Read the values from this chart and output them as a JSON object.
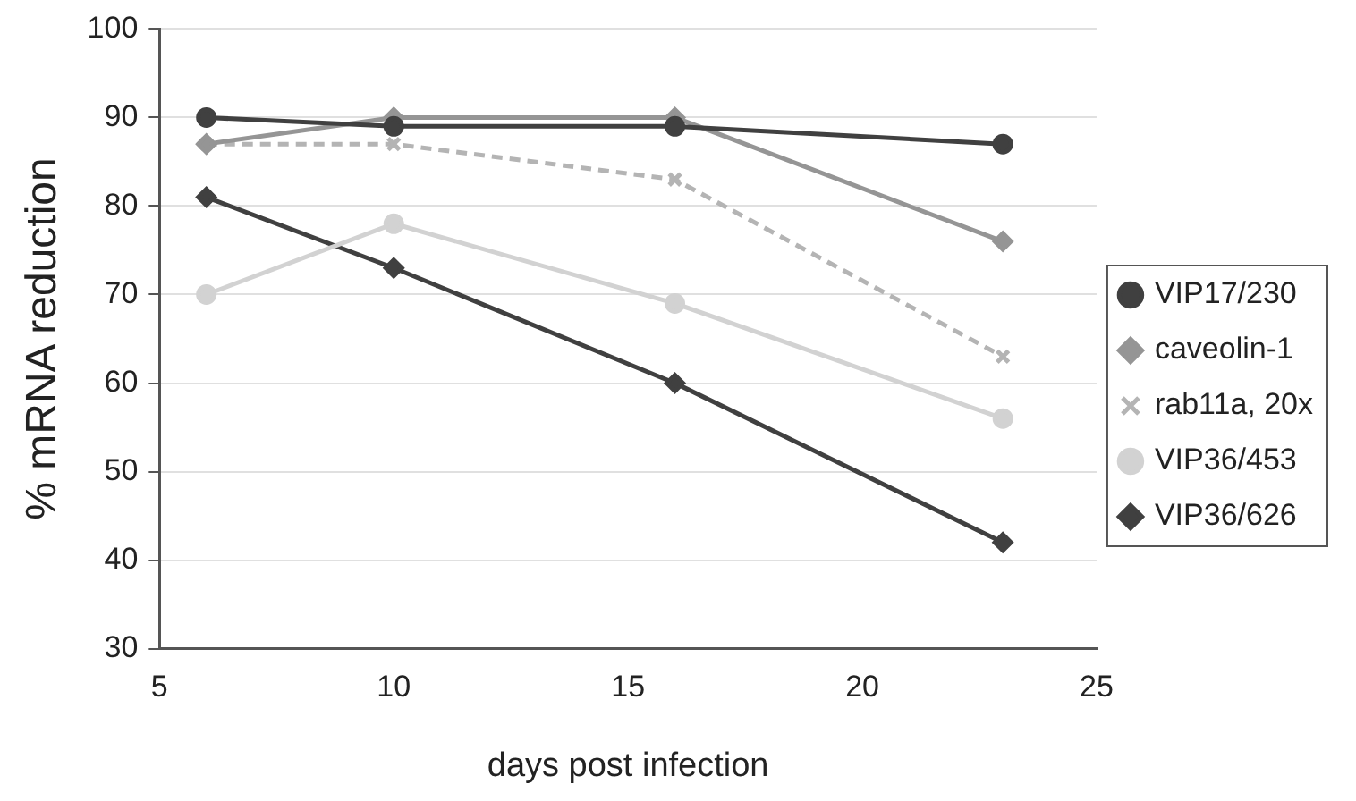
{
  "chart_data": {
    "type": "line",
    "xlabel": "days post infection",
    "ylabel": "% mRNA reduction",
    "x": [
      6,
      10,
      16,
      23
    ],
    "xlim": [
      5,
      25
    ],
    "xticks": [
      5,
      10,
      15,
      20,
      25
    ],
    "ylim": [
      30,
      100
    ],
    "yticks": [
      30,
      40,
      50,
      60,
      70,
      80,
      90,
      100
    ],
    "grid": "y",
    "legend": "right",
    "series": [
      {
        "name": "VIP17/230",
        "color": "#404040",
        "marker": "circle",
        "line_style": "solid",
        "values": [
          90,
          89,
          89,
          87
        ]
      },
      {
        "name": "caveolin-1",
        "color": "#959595",
        "marker": "diamond",
        "line_style": "solid",
        "values": [
          87,
          90,
          90,
          76
        ]
      },
      {
        "name": "rab11a, 20x",
        "color": "#b4b4b4",
        "marker": "cross",
        "line_style": "dashed",
        "values": [
          87,
          87,
          83,
          63
        ]
      },
      {
        "name": "VIP36/453",
        "color": "#d2d2d2",
        "marker": "circle",
        "line_style": "solid",
        "values": [
          70,
          78,
          69,
          56
        ]
      },
      {
        "name": "VIP36/626",
        "color": "#404040",
        "marker": "diamond",
        "line_style": "solid",
        "values": [
          81,
          73,
          60,
          42
        ]
      }
    ]
  }
}
